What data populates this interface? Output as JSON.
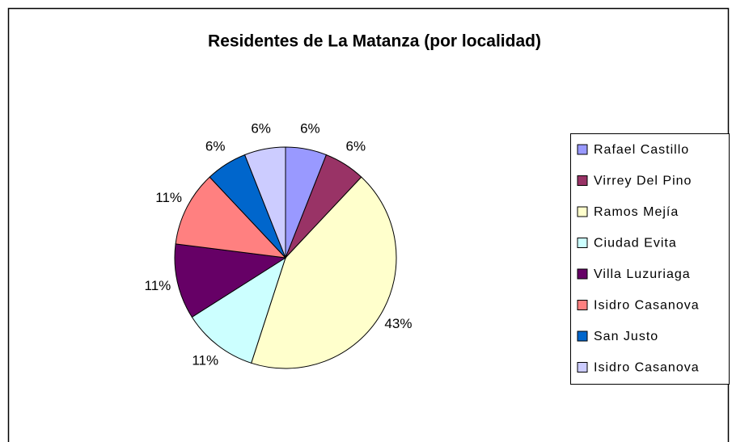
{
  "chart_data": {
    "type": "pie",
    "title": "Residentes de La Matanza (por localidad)",
    "categories": [
      "Rafael Castillo",
      "Virrey Del Pino",
      "Ramos Mejía",
      "Ciudad Evita",
      "Villa Luzuriaga",
      "Isidro Casanova",
      "San Justo",
      "Isidro Casanova"
    ],
    "values": [
      6,
      6,
      43,
      11,
      11,
      11,
      6,
      6
    ],
    "value_labels": [
      "6%",
      "6%",
      "43%",
      "11%",
      "11%",
      "11%",
      "6%",
      "6%"
    ],
    "colors": [
      "#9999ff",
      "#993366",
      "#ffffcc",
      "#ccffff",
      "#660066",
      "#ff8080",
      "#0066cc",
      "#ccccff"
    ],
    "legend": "right"
  }
}
